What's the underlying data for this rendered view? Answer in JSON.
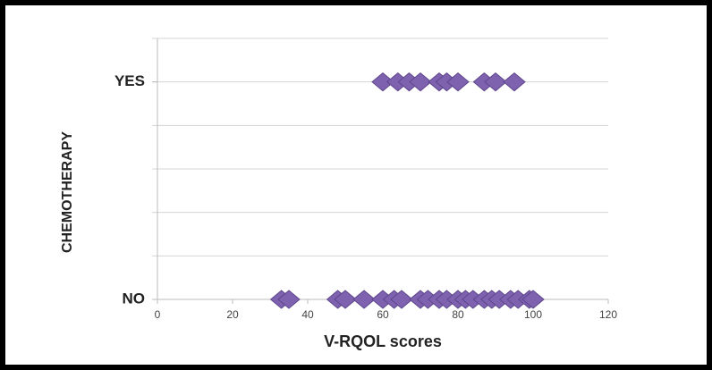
{
  "chart_data": {
    "type": "scatter",
    "x_label": "V-RQOL scores",
    "y_label": "CHEMOTHERAPY",
    "xlim": [
      0,
      120
    ],
    "xticks": [
      0,
      20,
      40,
      60,
      80,
      100,
      120
    ],
    "ylim": [
      0,
      6
    ],
    "yticks": [
      {
        "value": 0,
        "label": "NO"
      },
      {
        "value": 5,
        "label": "YES"
      }
    ],
    "ygrid": [
      0,
      1,
      2,
      3,
      4,
      5,
      6
    ],
    "grid": true,
    "marker": "diamond",
    "series": [
      {
        "color": "#7e62b0",
        "x": [
          60,
          64,
          67,
          70,
          75,
          77,
          80,
          87,
          90,
          95
        ],
        "y": [
          5,
          5,
          5,
          5,
          5,
          5,
          5,
          5,
          5,
          5
        ]
      },
      {
        "color": "#7e62b0",
        "x": [
          33,
          35,
          48,
          50,
          55,
          60,
          63,
          65,
          70,
          72,
          75,
          77,
          80,
          82,
          84,
          87,
          89,
          91,
          94,
          96,
          99,
          100
        ],
        "y": [
          0,
          0,
          0,
          0,
          0,
          0,
          0,
          0,
          0,
          0,
          0,
          0,
          0,
          0,
          0,
          0,
          0,
          0,
          0,
          0,
          0,
          0
        ]
      }
    ]
  }
}
